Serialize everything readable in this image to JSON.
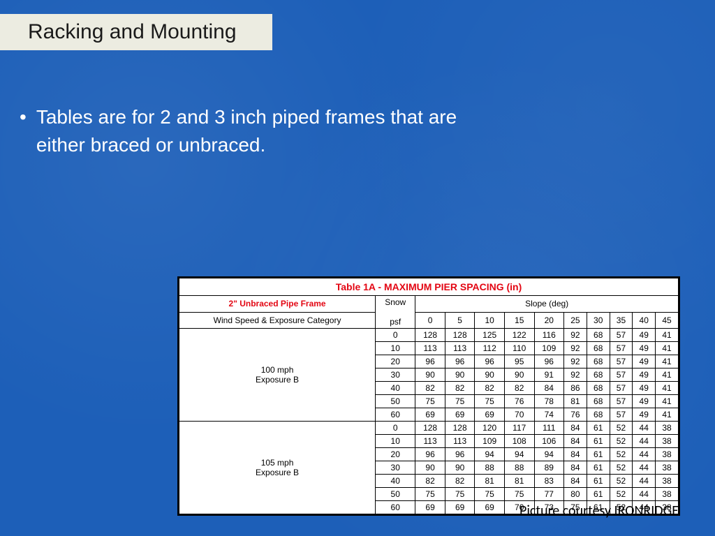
{
  "title": "Racking and Mounting",
  "bullet": "Tables are for 2 and 3 inch piped frames that are either braced or unbraced.",
  "credit": "Picture courtesy IRONRIDGE",
  "table": {
    "title": "Table 1A - MAXIMUM PIER SPACING (in)",
    "corner_red": "2\" Unbraced Pipe Frame",
    "corner_sub": "Wind Speed & Exposure Category",
    "snow_hdr": "Snow",
    "snow_unit": "psf",
    "slope_hdr": "Slope (deg)",
    "slope_ticks": [
      "0",
      "5",
      "10",
      "15",
      "20",
      "25",
      "30",
      "35",
      "40",
      "45"
    ],
    "groups": [
      {
        "label": "100 mph Exposure B",
        "rows": [
          {
            "psf": "0",
            "v": [
              "128",
              "128",
              "125",
              "122",
              "116",
              "92",
              "68",
              "57",
              "49",
              "41"
            ]
          },
          {
            "psf": "10",
            "v": [
              "113",
              "113",
              "112",
              "110",
              "109",
              "92",
              "68",
              "57",
              "49",
              "41"
            ]
          },
          {
            "psf": "20",
            "v": [
              "96",
              "96",
              "96",
              "95",
              "96",
              "92",
              "68",
              "57",
              "49",
              "41"
            ]
          },
          {
            "psf": "30",
            "v": [
              "90",
              "90",
              "90",
              "90",
              "91",
              "92",
              "68",
              "57",
              "49",
              "41"
            ]
          },
          {
            "psf": "40",
            "v": [
              "82",
              "82",
              "82",
              "82",
              "84",
              "86",
              "68",
              "57",
              "49",
              "41"
            ]
          },
          {
            "psf": "50",
            "v": [
              "75",
              "75",
              "75",
              "76",
              "78",
              "81",
              "68",
              "57",
              "49",
              "41"
            ]
          },
          {
            "psf": "60",
            "v": [
              "69",
              "69",
              "69",
              "70",
              "74",
              "76",
              "68",
              "57",
              "49",
              "41"
            ]
          }
        ]
      },
      {
        "label": "105 mph Exposure B",
        "rows": [
          {
            "psf": "0",
            "v": [
              "128",
              "128",
              "120",
              "117",
              "111",
              "84",
              "61",
              "52",
              "44",
              "38"
            ]
          },
          {
            "psf": "10",
            "v": [
              "113",
              "113",
              "109",
              "108",
              "106",
              "84",
              "61",
              "52",
              "44",
              "38"
            ]
          },
          {
            "psf": "20",
            "v": [
              "96",
              "96",
              "94",
              "94",
              "94",
              "84",
              "61",
              "52",
              "44",
              "38"
            ]
          },
          {
            "psf": "30",
            "v": [
              "90",
              "90",
              "88",
              "88",
              "89",
              "84",
              "61",
              "52",
              "44",
              "38"
            ]
          },
          {
            "psf": "40",
            "v": [
              "82",
              "82",
              "81",
              "81",
              "83",
              "84",
              "61",
              "52",
              "44",
              "38"
            ]
          },
          {
            "psf": "50",
            "v": [
              "75",
              "75",
              "75",
              "75",
              "77",
              "80",
              "61",
              "52",
              "44",
              "38"
            ]
          },
          {
            "psf": "60",
            "v": [
              "69",
              "69",
              "69",
              "70",
              "73",
              "75",
              "61",
              "52",
              "44",
              "38"
            ]
          }
        ]
      }
    ]
  },
  "colors": {
    "slide_bg": "#1d5fb8",
    "title_bg": "#ecece1",
    "title_fg": "#1a1a1a",
    "body_fg": "#ffffff",
    "table_border": "#000000",
    "table_title_fg": "#e30613"
  },
  "fonts": {
    "title_size_pt": 22,
    "body_size_pt": 21,
    "table_title_pt": 11,
    "cell_pt": 9
  }
}
